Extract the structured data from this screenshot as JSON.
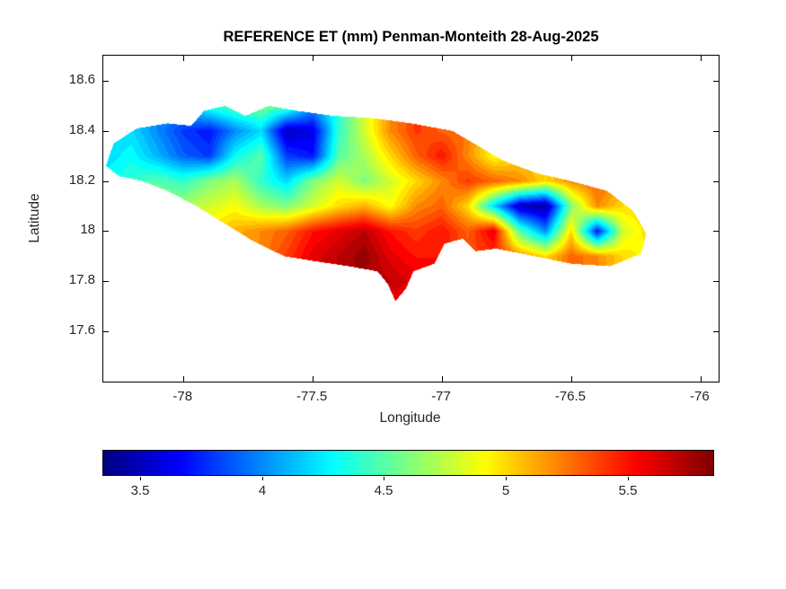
{
  "figure": {
    "background": "#ffffff"
  },
  "chart_data": {
    "type": "heatmap",
    "title": "REFERENCE ET (mm) Penman-Monteith 28-Aug-2025",
    "xlabel": "Longitude",
    "ylabel": "Latitude",
    "xlim": [
      -78.31,
      -75.93
    ],
    "ylim": [
      17.4,
      18.7
    ],
    "x_ticks": [
      -78,
      -77.5,
      -77,
      -76.5,
      -76
    ],
    "x_tick_labels": [
      "-78",
      "-77.5",
      "-77",
      "-76.5",
      "-76"
    ],
    "y_ticks": [
      17.6,
      17.8,
      18,
      18.2,
      18.4,
      18.6
    ],
    "y_tick_labels": [
      "17.6",
      "17.8",
      "18",
      "18.2",
      "18.4",
      "18.6"
    ],
    "grid_lines": false,
    "colormap": "jet",
    "color_range": [
      3.35,
      5.85
    ],
    "colorbar": {
      "orientation": "horizontal",
      "ticks": [
        3.5,
        4,
        4.5,
        5,
        5.5
      ],
      "tick_labels": [
        "3.5",
        "4",
        "4.5",
        "5",
        "5.5"
      ]
    },
    "grid": {
      "lon_start": -78.3,
      "lon_step": 0.1,
      "lat_start": 18.5,
      "lat_step": -0.1,
      "values_mm": [
        [
          null,
          null,
          null,
          null,
          4.4,
          4.5,
          4.6,
          4.5,
          null,
          null,
          null,
          null,
          null,
          null,
          null,
          null,
          null,
          null,
          null,
          null,
          null,
          null
        ],
        [
          null,
          4.2,
          4.0,
          3.8,
          3.7,
          4.0,
          4.2,
          3.5,
          3.6,
          4.4,
          4.8,
          5.2,
          5.4,
          5.3,
          null,
          null,
          null,
          null,
          null,
          null,
          null,
          null
        ],
        [
          4.2,
          4.3,
          4.1,
          3.9,
          3.8,
          4.3,
          4.5,
          3.8,
          3.7,
          4.5,
          4.7,
          5.0,
          5.3,
          5.5,
          5.2,
          4.9,
          5.0,
          null,
          null,
          null,
          null,
          null
        ],
        [
          4.3,
          4.4,
          4.5,
          4.4,
          4.6,
          4.7,
          4.4,
          4.2,
          4.6,
          4.8,
          4.6,
          4.8,
          5.0,
          5.2,
          5.4,
          5.3,
          5.2,
          5.0,
          5.2,
          5.3,
          null,
          null
        ],
        [
          4.4,
          4.5,
          4.6,
          4.7,
          4.8,
          4.9,
          4.7,
          4.6,
          4.8,
          5.0,
          5.1,
          4.9,
          5.2,
          5.3,
          5.0,
          4.2,
          3.5,
          3.4,
          4.6,
          5.2,
          5.0,
          null
        ],
        [
          null,
          null,
          null,
          null,
          5.0,
          5.1,
          5.2,
          5.3,
          5.5,
          5.6,
          5.7,
          5.5,
          5.4,
          5.5,
          5.3,
          5.6,
          4.5,
          4.0,
          5.0,
          3.7,
          4.8,
          5.0
        ],
        [
          null,
          null,
          null,
          null,
          null,
          null,
          5.2,
          5.4,
          5.6,
          5.7,
          5.8,
          5.6,
          5.5,
          null,
          null,
          5.4,
          5.2,
          5.0,
          5.3,
          5.2,
          5.0,
          4.9
        ],
        [
          null,
          null,
          null,
          null,
          null,
          null,
          null,
          null,
          null,
          null,
          null,
          5.7,
          5.6,
          null,
          null,
          null,
          null,
          null,
          null,
          null,
          null,
          null
        ],
        [
          null,
          null,
          null,
          null,
          null,
          null,
          null,
          null,
          null,
          null,
          null,
          5.5,
          null,
          null,
          null,
          null,
          null,
          null,
          null,
          null,
          null,
          null
        ]
      ]
    },
    "island_outline_lonlat": [
      [
        -78.3,
        18.26
      ],
      [
        -78.27,
        18.35
      ],
      [
        -78.18,
        18.41
      ],
      [
        -78.06,
        18.43
      ],
      [
        -77.97,
        18.42
      ],
      [
        -77.92,
        18.48
      ],
      [
        -77.84,
        18.5
      ],
      [
        -77.76,
        18.46
      ],
      [
        -77.67,
        18.5
      ],
      [
        -77.56,
        18.48
      ],
      [
        -77.42,
        18.46
      ],
      [
        -77.26,
        18.45
      ],
      [
        -77.12,
        18.43
      ],
      [
        -76.96,
        18.4
      ],
      [
        -76.86,
        18.34
      ],
      [
        -76.76,
        18.28
      ],
      [
        -76.63,
        18.23
      ],
      [
        -76.5,
        18.2
      ],
      [
        -76.36,
        18.16
      ],
      [
        -76.26,
        18.08
      ],
      [
        -76.21,
        17.99
      ],
      [
        -76.23,
        17.91
      ],
      [
        -76.35,
        17.86
      ],
      [
        -76.5,
        17.87
      ],
      [
        -76.64,
        17.9
      ],
      [
        -76.79,
        17.93
      ],
      [
        -76.87,
        17.92
      ],
      [
        -76.92,
        17.97
      ],
      [
        -76.99,
        17.95
      ],
      [
        -77.03,
        17.87
      ],
      [
        -77.11,
        17.84
      ],
      [
        -77.14,
        17.77
      ],
      [
        -77.18,
        17.72
      ],
      [
        -77.21,
        17.79
      ],
      [
        -77.25,
        17.84
      ],
      [
        -77.36,
        17.86
      ],
      [
        -77.49,
        17.88
      ],
      [
        -77.61,
        17.9
      ],
      [
        -77.73,
        17.96
      ],
      [
        -77.84,
        18.03
      ],
      [
        -77.95,
        18.1
      ],
      [
        -78.06,
        18.16
      ],
      [
        -78.16,
        18.2
      ],
      [
        -78.25,
        18.22
      ]
    ]
  }
}
